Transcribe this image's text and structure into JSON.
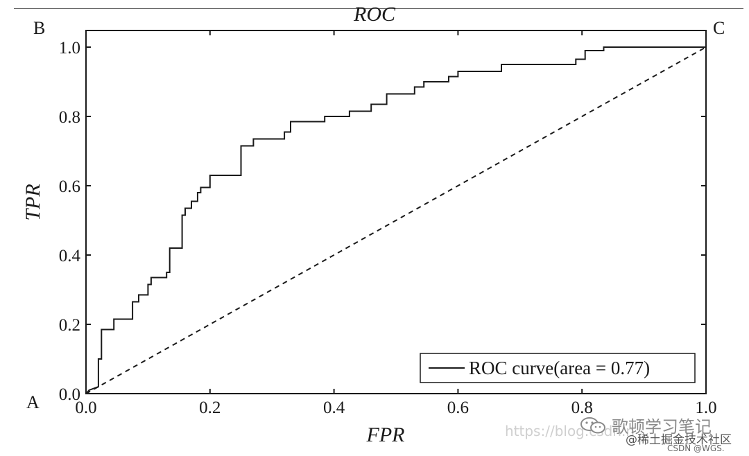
{
  "chart_data": {
    "type": "line",
    "title": "ROC",
    "xlabel": "FPR",
    "ylabel": "TPR",
    "xlim": [
      0,
      1
    ],
    "ylim": [
      0,
      1
    ],
    "x_ticks": [
      "0.0",
      "0.2",
      "0.4",
      "0.6",
      "0.8",
      "1.0"
    ],
    "y_ticks": [
      "0.0",
      "0.2",
      "0.4",
      "0.6",
      "0.8",
      "1.0"
    ],
    "grid": false,
    "legend_position": "bottom-right",
    "corner_labels": {
      "A": "A",
      "B": "B",
      "C": "C"
    },
    "series": [
      {
        "name": "ROC curve(area = 0.77)",
        "style": "solid",
        "points": [
          [
            0,
            0
          ],
          [
            0.005,
            0.01
          ],
          [
            0.02,
            0.02
          ],
          [
            0.02,
            0.1
          ],
          [
            0.025,
            0.1
          ],
          [
            0.025,
            0.185
          ],
          [
            0.045,
            0.185
          ],
          [
            0.045,
            0.215
          ],
          [
            0.075,
            0.215
          ],
          [
            0.075,
            0.265
          ],
          [
            0.085,
            0.265
          ],
          [
            0.085,
            0.285
          ],
          [
            0.1,
            0.285
          ],
          [
            0.1,
            0.315
          ],
          [
            0.105,
            0.315
          ],
          [
            0.105,
            0.335
          ],
          [
            0.13,
            0.335
          ],
          [
            0.13,
            0.35
          ],
          [
            0.135,
            0.35
          ],
          [
            0.135,
            0.42
          ],
          [
            0.155,
            0.42
          ],
          [
            0.155,
            0.515
          ],
          [
            0.16,
            0.515
          ],
          [
            0.16,
            0.535
          ],
          [
            0.17,
            0.535
          ],
          [
            0.17,
            0.555
          ],
          [
            0.18,
            0.555
          ],
          [
            0.18,
            0.58
          ],
          [
            0.185,
            0.58
          ],
          [
            0.185,
            0.595
          ],
          [
            0.2,
            0.595
          ],
          [
            0.2,
            0.63
          ],
          [
            0.25,
            0.63
          ],
          [
            0.25,
            0.715
          ],
          [
            0.27,
            0.715
          ],
          [
            0.27,
            0.735
          ],
          [
            0.32,
            0.735
          ],
          [
            0.32,
            0.755
          ],
          [
            0.33,
            0.755
          ],
          [
            0.33,
            0.785
          ],
          [
            0.385,
            0.785
          ],
          [
            0.385,
            0.8
          ],
          [
            0.425,
            0.8
          ],
          [
            0.425,
            0.815
          ],
          [
            0.46,
            0.815
          ],
          [
            0.46,
            0.835
          ],
          [
            0.485,
            0.835
          ],
          [
            0.485,
            0.865
          ],
          [
            0.53,
            0.865
          ],
          [
            0.53,
            0.885
          ],
          [
            0.545,
            0.885
          ],
          [
            0.545,
            0.9
          ],
          [
            0.585,
            0.9
          ],
          [
            0.585,
            0.915
          ],
          [
            0.6,
            0.915
          ],
          [
            0.6,
            0.93
          ],
          [
            0.67,
            0.93
          ],
          [
            0.67,
            0.95
          ],
          [
            0.79,
            0.95
          ],
          [
            0.79,
            0.965
          ],
          [
            0.805,
            0.965
          ],
          [
            0.805,
            0.99
          ],
          [
            0.835,
            0.99
          ],
          [
            0.835,
            1.0
          ],
          [
            1.0,
            1.0
          ]
        ]
      },
      {
        "style": "dashed",
        "points": [
          [
            0,
            0
          ],
          [
            1,
            1
          ]
        ]
      }
    ],
    "legend": [
      "ROC curve(area = 0.77)"
    ]
  },
  "watermarks": {
    "url": "https://blog.csdn.n",
    "blog": "歌顿学习笔记",
    "juejin": "@稀土掘金技术社区",
    "csdn": "CSDN @WGS."
  },
  "icons": {
    "wechat": "wechat-icon"
  },
  "colors": {
    "line": "#1a1a1a",
    "axis": "#1a1a1a",
    "background": "#ffffff"
  }
}
